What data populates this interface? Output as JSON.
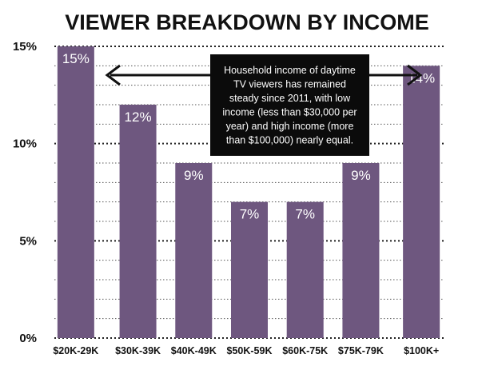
{
  "chart_data": {
    "type": "bar",
    "title": "VIEWER BREAKDOWN BY INCOME",
    "categories": [
      "$20K-29K",
      "$30K-39K",
      "$40K-49K",
      "$50K-59K",
      "$60K-75K",
      "$75K-79K",
      "$100K+"
    ],
    "values": [
      15,
      12,
      9,
      7,
      7,
      9,
      14
    ],
    "value_labels": [
      "15%",
      "12%",
      "9%",
      "7%",
      "7%",
      "9%",
      "14%"
    ],
    "y_ticks": [
      0,
      5,
      10,
      15
    ],
    "y_tick_labels": [
      "0%",
      "5%",
      "10%",
      "15%"
    ],
    "ylim": [
      0,
      15
    ],
    "xlabel": "",
    "ylabel": "",
    "grid": true,
    "annotation": {
      "lines": [
        "Household income of daytime",
        "TV viewers has remained",
        "steady since 2011, with low",
        "income (less than $30,000 per",
        "year) and high income (more",
        "than $100,000) nearly equal."
      ]
    },
    "colors": {
      "bar": "#6e577f",
      "annotation_bg": "#0b0b0b",
      "major_grid": "#222222",
      "minor_grid": "#555555"
    }
  }
}
